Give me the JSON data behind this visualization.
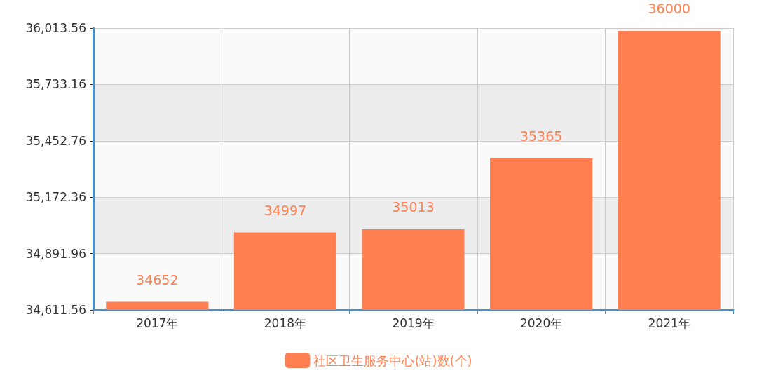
{
  "chart_data": {
    "type": "bar",
    "categories": [
      "2017年",
      "2018年",
      "2019年",
      "2020年",
      "2021年"
    ],
    "series": [
      {
        "name": "社区卫生服务中心(站)数(个)",
        "color": "#ff7f50",
        "values": [
          34652,
          34997,
          35013,
          35365,
          36000
        ]
      }
    ],
    "ylim": [
      34611.56,
      36013.56
    ],
    "yticks": [
      {
        "value": 34611.56,
        "label": "34,611.56"
      },
      {
        "value": 34891.96,
        "label": "34,891.96"
      },
      {
        "value": 35172.36,
        "label": "35,172.36"
      },
      {
        "value": 35452.76,
        "label": "35,452.76"
      },
      {
        "value": 35733.16,
        "label": "35,733.16"
      },
      {
        "value": 36013.56,
        "label": "36,013.56"
      }
    ],
    "grid": true,
    "legend": "bottom",
    "data_labels": true
  }
}
